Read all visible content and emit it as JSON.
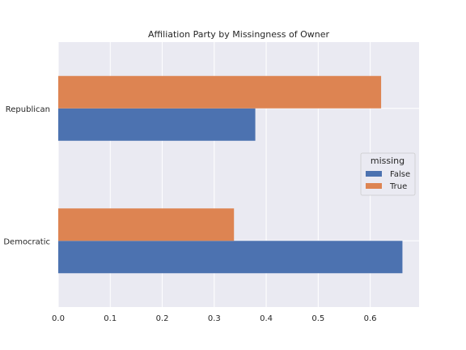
{
  "chart_data": {
    "type": "bar",
    "orientation": "horizontal",
    "title": "Affiliation Party by Missingness of Owner",
    "xlabel": "",
    "ylabel": "",
    "categories": [
      "Democratic",
      "Republican"
    ],
    "series": [
      {
        "name": "False",
        "values": [
          0.662,
          0.379
        ],
        "color": "#4c72b0"
      },
      {
        "name": "True",
        "values": [
          0.338,
          0.621
        ],
        "color": "#dd8452"
      }
    ],
    "xlim": [
      0,
      0.694
    ],
    "xticks": [
      0.0,
      0.1,
      0.2,
      0.3,
      0.4,
      0.5,
      0.6
    ],
    "xtick_labels": [
      "0.0",
      "0.1",
      "0.2",
      "0.3",
      "0.4",
      "0.5",
      "0.6"
    ],
    "grid": true,
    "background_color": "#eaeaf2",
    "legend": {
      "title": "missing",
      "placement": "right",
      "entries": [
        "False",
        "True"
      ]
    }
  }
}
